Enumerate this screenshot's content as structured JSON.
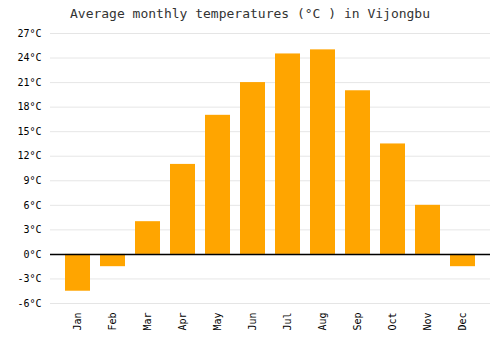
{
  "chart_data": {
    "type": "bar",
    "title": "Average monthly temperatures (°C ) in Vijongbu",
    "categories": [
      "Jan",
      "Feb",
      "Mar",
      "Apr",
      "May",
      "Jun",
      "Jul",
      "Aug",
      "Sep",
      "Oct",
      "Nov",
      "Dec"
    ],
    "values": [
      -4.5,
      -1.5,
      4.0,
      11.0,
      17.0,
      21.0,
      24.5,
      25.0,
      20.0,
      13.5,
      6.0,
      -1.5
    ],
    "color": "#FFA500",
    "ylim": [
      -6,
      27
    ],
    "yticks": [
      {
        "value": -6,
        "label": "-6°C"
      },
      {
        "value": -3,
        "label": "-3°C"
      },
      {
        "value": 0,
        "label": "0°C"
      },
      {
        "value": 3,
        "label": "3°C"
      },
      {
        "value": 6,
        "label": "6°C"
      },
      {
        "value": 9,
        "label": "9°C"
      },
      {
        "value": 12,
        "label": "12°C"
      },
      {
        "value": 15,
        "label": "15°C"
      },
      {
        "value": 18,
        "label": "18°C"
      },
      {
        "value": 21,
        "label": "21°C"
      },
      {
        "value": 24,
        "label": "24°C"
      },
      {
        "value": 27,
        "label": "27°C"
      }
    ],
    "grid": true
  }
}
